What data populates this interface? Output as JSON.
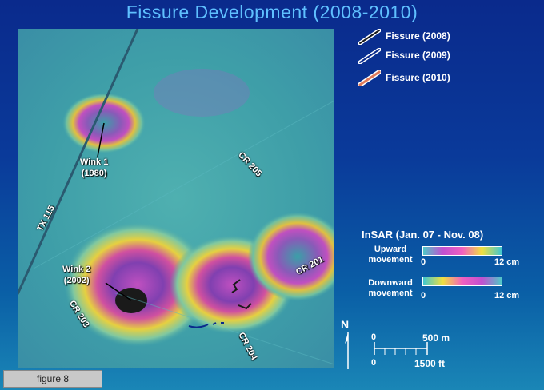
{
  "title": "Fissure Development (2008-2010)",
  "legend_fissures": [
    {
      "label": "Fissure (2008)",
      "color": "#1a1a1a"
    },
    {
      "label": "Fissure (2009)",
      "color": "#0a2a8c"
    },
    {
      "label": "Fissure (2010)",
      "color": "#e07a5a"
    }
  ],
  "map_labels": {
    "wink1": "Wink 1\n(1980)",
    "wink2": "Wink 2\n(2002)",
    "cr205": "CR 205",
    "tx115": "TX 115",
    "cr201": "CR 201",
    "cr203": "CR 203",
    "cr204": "CR 204"
  },
  "insar": {
    "title": "InSAR (Jan. 07 - Nov. 08)",
    "upward_label": "Upward\nmovement",
    "downward_label": "Downward\nmovement",
    "scale_min": "0",
    "scale_max": "12 cm"
  },
  "scale_bar": {
    "north": "N",
    "metric_min": "0",
    "metric_max": "500 m",
    "imperial_min": "0",
    "imperial_max": "1500 ft"
  },
  "caption": "figure 8"
}
